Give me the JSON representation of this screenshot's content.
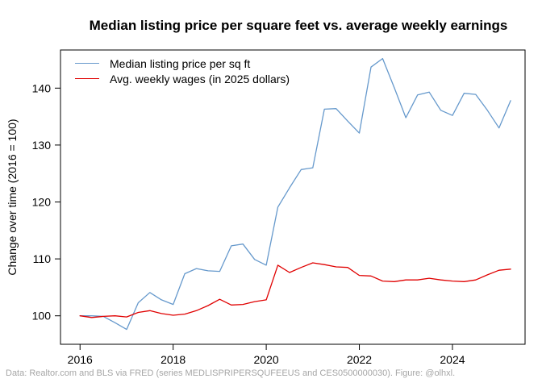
{
  "figure": {
    "title": "Median listing price per square feet vs. average weekly earnings",
    "footer": "Data: Realtor.com and BLS via FRED (series MEDLISPRIPERSQUFEEUS and CES0500000030). Figure: @olhxl."
  },
  "legend": {
    "items": [
      {
        "label": "Median listing price per sq ft",
        "color": "#6699cc"
      },
      {
        "label": "Avg. weekly wages (in 2025 dollars)",
        "color": "#e00000"
      }
    ]
  },
  "chart_data": {
    "type": "line",
    "title": "Median listing price per square feet vs. average weekly earnings",
    "xlabel": "",
    "ylabel": "Change over time (2016 = 100)",
    "x": [
      2016.0,
      2016.25,
      2016.5,
      2016.75,
      2017.0,
      2017.25,
      2017.5,
      2017.75,
      2018.0,
      2018.25,
      2018.5,
      2018.75,
      2019.0,
      2019.25,
      2019.5,
      2019.75,
      2020.0,
      2020.25,
      2020.5,
      2020.75,
      2021.0,
      2021.25,
      2021.5,
      2021.75,
      2022.0,
      2022.25,
      2022.5,
      2022.75,
      2023.0,
      2023.25,
      2023.5,
      2023.75,
      2024.0,
      2024.25,
      2024.5,
      2024.75,
      2025.0,
      2025.25
    ],
    "series": [
      {
        "name": "Median listing price per sq ft",
        "color": "#6699cc",
        "values": [
          100.0,
          100.0,
          99.9,
          98.8,
          97.6,
          102.3,
          104.1,
          102.8,
          102.0,
          107.4,
          108.3,
          107.9,
          107.8,
          112.3,
          112.6,
          109.9,
          108.9,
          119.1,
          122.5,
          125.7,
          126.0,
          136.3,
          136.4,
          134.2,
          132.1,
          143.7,
          145.2,
          140.1,
          134.8,
          138.8,
          139.3,
          136.1,
          135.2,
          139.1,
          138.9,
          136.1,
          133.0,
          137.8
        ]
      },
      {
        "name": "Avg. weekly wages (in 2025 dollars)",
        "color": "#e00000",
        "values": [
          100.0,
          99.7,
          99.9,
          100.0,
          99.8,
          100.6,
          100.9,
          100.4,
          100.1,
          100.3,
          100.9,
          101.8,
          102.9,
          101.9,
          102.0,
          102.5,
          102.8,
          108.9,
          107.6,
          108.5,
          109.3,
          109.0,
          108.6,
          108.5,
          107.1,
          107.0,
          106.1,
          106.0,
          106.3,
          106.3,
          106.6,
          106.3,
          106.1,
          106.0,
          106.3,
          107.2,
          108.0,
          108.2
        ]
      }
    ],
    "xticks": [
      2016,
      2018,
      2020,
      2022,
      2024
    ],
    "yticks": [
      100,
      110,
      120,
      130,
      140
    ],
    "xlim": [
      2015.58,
      2025.56
    ],
    "ylim": [
      95.0,
      146.7
    ],
    "grid": false,
    "legend_position": "top-left"
  }
}
